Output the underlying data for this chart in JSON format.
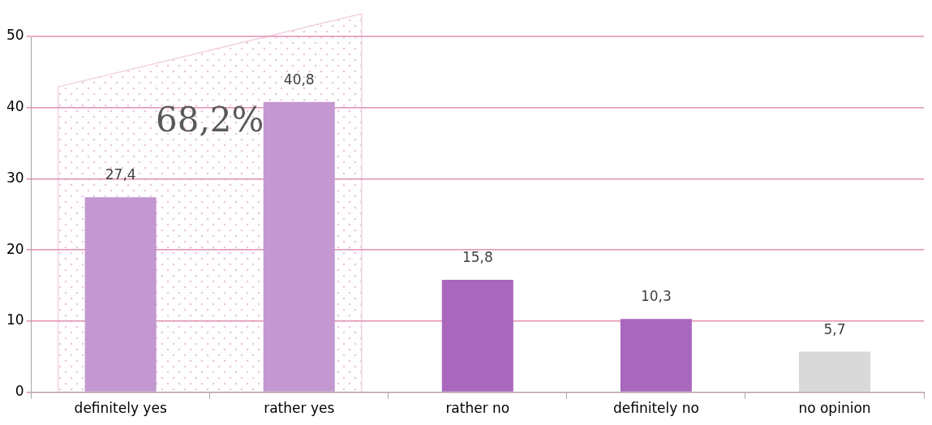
{
  "chart_data": {
    "type": "bar",
    "categories": [
      "definitely yes",
      "rather yes",
      "rather no",
      "definitely no",
      "no opinion"
    ],
    "values": [
      27.4,
      40.8,
      15.8,
      10.3,
      5.7
    ],
    "colors": [
      "#c397d0",
      "#c397d0",
      "#a967bd",
      "#a967bd",
      "#d9d9d9"
    ],
    "value_labels": [
      "27,4",
      "40,8",
      "15,8",
      "10,3",
      "5,7"
    ],
    "ylim": [
      0,
      50
    ],
    "yticks": [
      0,
      10,
      20,
      30,
      40,
      50
    ],
    "grid": "y",
    "legend": false,
    "bands": [
      {
        "axis": "x",
        "from": "definitely yes",
        "to": "rather yes",
        "label": "68,2%",
        "color": "#f2d3e2"
      }
    ]
  }
}
